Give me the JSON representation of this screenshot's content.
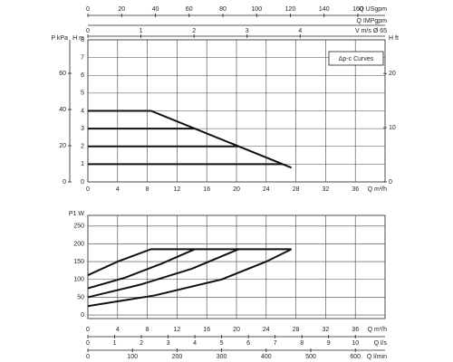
{
  "top_axes": [
    {
      "label": "Q USgpm",
      "xlim": [
        0,
        176.1
      ],
      "xticks": [
        0,
        20,
        40,
        60,
        80,
        100,
        120,
        140,
        160
      ]
    },
    {
      "label": "Q IMPgpm",
      "xlim": [
        0,
        146.6
      ],
      "xticks": []
    },
    {
      "label": "V m/s Ø 65",
      "xlim": [
        0,
        5.6
      ],
      "xticks": [
        0,
        1,
        2,
        3,
        4
      ]
    }
  ],
  "head_chart": {
    "type": "line",
    "legend_title": "Δp-c Curves",
    "x_label": "Q m³/h",
    "xlim": [
      0,
      40
    ],
    "xticks": [
      0,
      4,
      8,
      12,
      16,
      20,
      24,
      28,
      32,
      36
    ],
    "y_label": "H m",
    "ylim": [
      0,
      8
    ],
    "yticks": [
      0,
      1,
      2,
      3,
      4,
      5,
      6,
      7,
      8
    ],
    "kpa_label": "P kPa",
    "kpa_lim": [
      0,
      78.5
    ],
    "kpa_ticks": [
      0,
      20,
      40,
      60
    ],
    "ft_label": "H ft",
    "ft_lim": [
      0,
      26.2
    ],
    "ft_ticks": [
      0,
      10,
      20
    ],
    "color": "#111111",
    "series": [
      {
        "x": [
          0,
          8.5,
          27.4
        ],
        "values": [
          4,
          4,
          0.8
        ]
      },
      {
        "x": [
          0,
          14.4
        ],
        "values": [
          3,
          3
        ]
      },
      {
        "x": [
          0,
          20.3
        ],
        "values": [
          2,
          2
        ]
      },
      {
        "x": [
          0,
          26.2
        ],
        "values": [
          1,
          1
        ]
      }
    ]
  },
  "power_chart": {
    "type": "line",
    "x_label": "Q m³/h",
    "xlim": [
      0,
      40
    ],
    "xticks": [
      0,
      4,
      8,
      12,
      16,
      20,
      24,
      28,
      32,
      36
    ],
    "y_label": "P1 W",
    "ylim": [
      -10,
      280
    ],
    "yticks": [
      0,
      50,
      100,
      150,
      200,
      250
    ],
    "color": "#111111",
    "series": [
      {
        "x": [
          0,
          4,
          8.5,
          27.4
        ],
        "values": [
          112,
          150,
          185,
          185
        ]
      },
      {
        "x": [
          0,
          5,
          10,
          14.4
        ],
        "values": [
          75,
          105,
          145,
          185
        ]
      },
      {
        "x": [
          0,
          7,
          14,
          20.3
        ],
        "values": [
          50,
          85,
          130,
          185
        ]
      },
      {
        "x": [
          0,
          9,
          18,
          24,
          27.4
        ],
        "values": [
          25,
          55,
          100,
          150,
          185
        ]
      }
    ]
  },
  "bottom_axes": [
    {
      "label": "Q l/s",
      "xlim": [
        0,
        11.11
      ],
      "xticks": [
        0,
        1,
        2,
        3,
        4,
        5,
        6,
        7,
        8,
        9,
        10
      ]
    },
    {
      "label": "Q l/min",
      "xlim": [
        0,
        666.7
      ],
      "xticks": [
        0,
        100,
        200,
        300,
        400,
        500,
        600
      ]
    }
  ]
}
